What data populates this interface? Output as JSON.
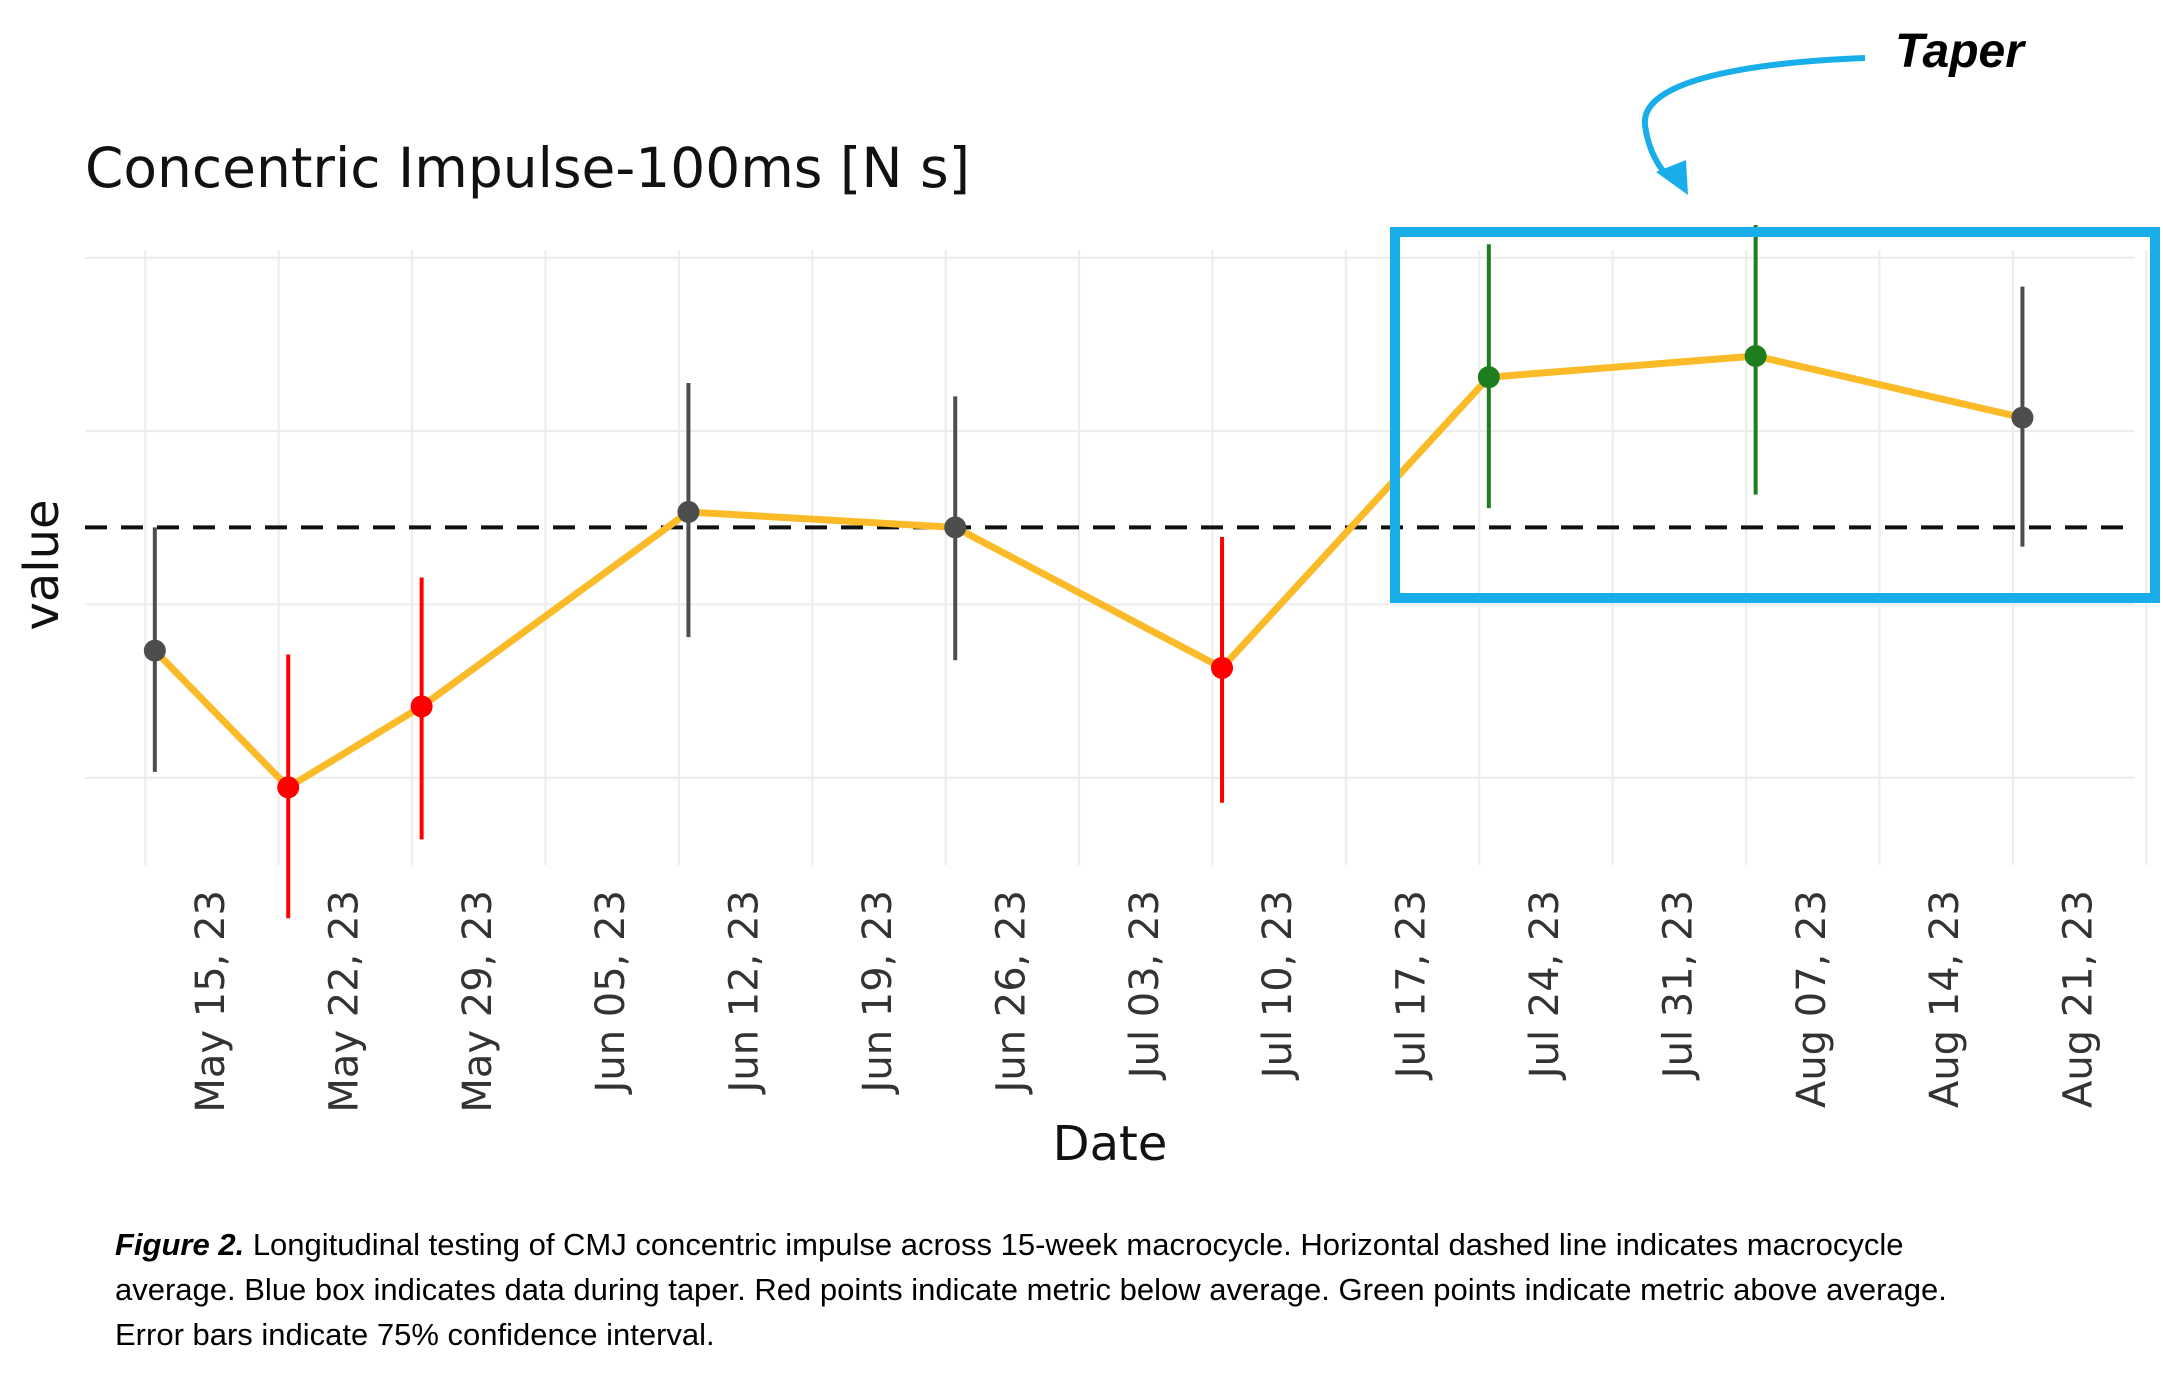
{
  "chart_data": {
    "type": "line",
    "title": "Concentric Impulse-100ms [N s]",
    "xlabel": "Date",
    "ylabel": "value",
    "x_ticks": [
      "May 15, 23",
      "May 22, 23",
      "May 29, 23",
      "Jun 05, 23",
      "Jun 12, 23",
      "Jun 19, 23",
      "Jun 26, 23",
      "Jul 03, 23",
      "Jul 10, 23",
      "Jul 17, 23",
      "Jul 24, 23",
      "Jul 31, 23",
      "Aug 07, 23",
      "Aug 14, 23",
      "Aug 21, 23"
    ],
    "x_range": [
      "2023-05-08",
      "2023-08-25"
    ],
    "y_range": [
      0.5,
      4.0
    ],
    "y_ticks_shown": false,
    "grid": true,
    "average_line": {
      "value": 2.3,
      "style": "dashed",
      "color": "#111111"
    },
    "line_color": "#FBBB28",
    "point_colors": {
      "below": "#FF0000",
      "above": "#1E7D1E",
      "neutral": "#4D4D4D"
    },
    "series": [
      {
        "points": [
          {
            "date": "2023-05-12",
            "y": 1.66,
            "ci": [
              1.03,
              2.3
            ],
            "status": "neutral"
          },
          {
            "date": "2023-05-19",
            "y": 0.95,
            "ci": [
              0.27,
              1.64
            ],
            "status": "below"
          },
          {
            "date": "2023-05-26",
            "y": 1.37,
            "ci": [
              0.68,
              2.04
            ],
            "status": "below"
          },
          {
            "date": "2023-06-09",
            "y": 2.38,
            "ci": [
              1.73,
              3.05
            ],
            "status": "neutral"
          },
          {
            "date": "2023-06-23",
            "y": 2.3,
            "ci": [
              1.61,
              2.98
            ],
            "status": "neutral"
          },
          {
            "date": "2023-07-07",
            "y": 1.57,
            "ci": [
              0.87,
              2.25
            ],
            "status": "below"
          },
          {
            "date": "2023-07-21",
            "y": 3.08,
            "ci": [
              2.4,
              3.77
            ],
            "status": "above"
          },
          {
            "date": "2023-08-04",
            "y": 3.19,
            "ci": [
              2.47,
              3.87
            ],
            "status": "above"
          },
          {
            "date": "2023-08-18",
            "y": 2.87,
            "ci": [
              2.2,
              3.55
            ],
            "status": "neutral"
          }
        ]
      }
    ],
    "highlight_box": {
      "label": "Taper",
      "from": "2023-07-16",
      "to": "2023-08-25",
      "color": "#19AEEA"
    }
  },
  "caption": {
    "figure_label": "Figure 2.",
    "text": " Longitudinal testing of CMJ concentric impulse across 15-week macrocycle. Horizontal dashed line indicates macrocycle average. Blue box indicates data during taper. Red points indicate metric below average. Green points indicate metric above average. Error bars indicate 75% confidence interval."
  }
}
